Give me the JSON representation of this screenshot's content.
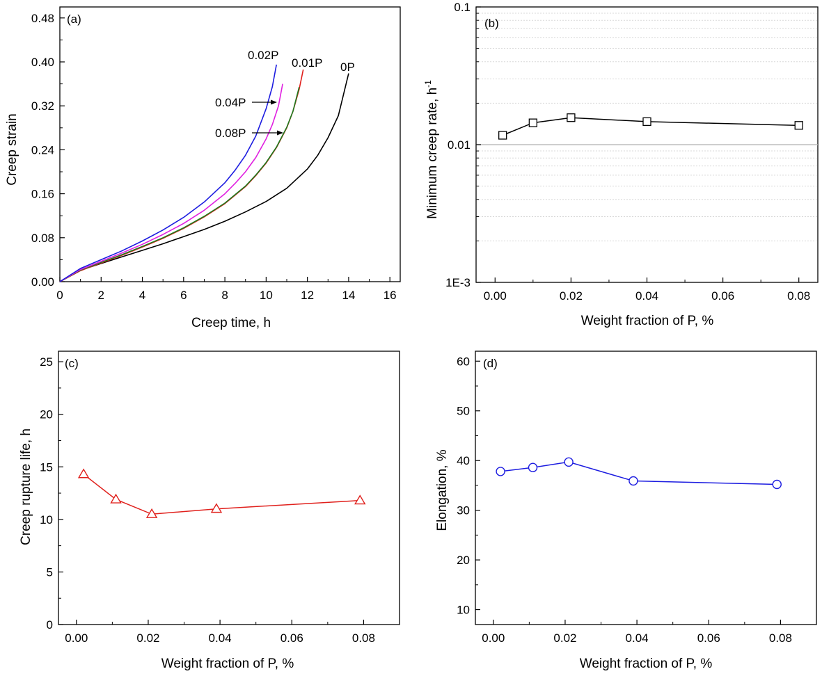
{
  "chart_data": [
    {
      "panel": "(a)",
      "type": "line",
      "xlabel": "Creep time, h",
      "ylabel": "Creep strain",
      "xlim": [
        0,
        16.5
      ],
      "ylim": [
        0,
        0.5
      ],
      "xticks": [
        "0",
        "2",
        "4",
        "6",
        "8",
        "10",
        "12",
        "14",
        "16"
      ],
      "yticks": [
        "0.00",
        "0.08",
        "0.16",
        "0.24",
        "0.32",
        "0.40",
        "0.48"
      ],
      "series": [
        {
          "name": "0P",
          "color": "#000000",
          "x": [
            0,
            1,
            2,
            3,
            4,
            5,
            6,
            7,
            8,
            9,
            10,
            11,
            12,
            12.5,
            13,
            13.5,
            14
          ],
          "y": [
            0,
            0.021,
            0.033,
            0.045,
            0.057,
            0.069,
            0.082,
            0.095,
            0.11,
            0.127,
            0.146,
            0.17,
            0.205,
            0.23,
            0.262,
            0.302,
            0.379
          ]
        },
        {
          "name": "0.01P",
          "color": "#e0201c",
          "x": [
            0,
            1,
            2,
            3,
            4,
            5,
            6,
            7,
            8,
            9,
            9.5,
            10,
            10.5,
            11,
            11.3,
            11.6,
            11.8
          ],
          "y": [
            0,
            0.02,
            0.034,
            0.048,
            0.063,
            0.079,
            0.097,
            0.118,
            0.142,
            0.173,
            0.193,
            0.216,
            0.244,
            0.28,
            0.31,
            0.35,
            0.386
          ]
        },
        {
          "name": "0.08P",
          "color": "#1e7a1e",
          "x": [
            0,
            1,
            2,
            3,
            4,
            5,
            6,
            7,
            8,
            9,
            9.5,
            10,
            10.5,
            11,
            11.3,
            11.6
          ],
          "y": [
            0,
            0.021,
            0.035,
            0.049,
            0.064,
            0.08,
            0.098,
            0.119,
            0.143,
            0.174,
            0.194,
            0.217,
            0.245,
            0.281,
            0.31,
            0.354
          ]
        },
        {
          "name": "0.04P",
          "color": "#e020e0",
          "x": [
            0,
            1,
            2,
            3,
            4,
            5,
            6,
            7,
            8,
            8.5,
            9,
            9.5,
            10,
            10.3,
            10.6,
            10.8
          ],
          "y": [
            0,
            0.022,
            0.037,
            0.052,
            0.068,
            0.086,
            0.106,
            0.13,
            0.16,
            0.179,
            0.2,
            0.226,
            0.26,
            0.286,
            0.32,
            0.36
          ]
        },
        {
          "name": "0.02P",
          "color": "#1c1ce0",
          "x": [
            0,
            1,
            2,
            3,
            4,
            5,
            6,
            7,
            8,
            8.5,
            9,
            9.5,
            10,
            10.3,
            10.5
          ],
          "y": [
            0,
            0.024,
            0.04,
            0.056,
            0.074,
            0.094,
            0.117,
            0.145,
            0.18,
            0.203,
            0.23,
            0.265,
            0.315,
            0.355,
            0.395
          ]
        }
      ],
      "labels": [
        "0.02P",
        "0.01P",
        "0P",
        "0.04P",
        "0.08P"
      ]
    },
    {
      "panel": "(b)",
      "type": "line",
      "scale_y": "log",
      "xlabel": "Weight fraction of P, %",
      "ylabel_main": "Minimum creep rate, h",
      "ylabel_sup": "-1",
      "xlim": [
        -0.005,
        0.085
      ],
      "ylim": [
        0.001,
        0.1
      ],
      "xticks": [
        "0.00",
        "0.02",
        "0.04",
        "0.06",
        "0.08"
      ],
      "yticks": [
        "1E-3",
        "0.01",
        "0.1"
      ],
      "grid": true,
      "marker": "square",
      "color": "#000000",
      "x": [
        0.002,
        0.01,
        0.02,
        0.04,
        0.08
      ],
      "y": [
        0.0117,
        0.0144,
        0.0157,
        0.0147,
        0.0138
      ]
    },
    {
      "panel": "(c)",
      "type": "line",
      "xlabel": "Weight fraction of P, %",
      "ylabel": "Creep rupture life, h",
      "xlim": [
        -0.005,
        0.09
      ],
      "ylim": [
        0,
        26
      ],
      "xticks": [
        "0.00",
        "0.02",
        "0.04",
        "0.06",
        "0.08"
      ],
      "yticks": [
        "0",
        "5",
        "10",
        "15",
        "20",
        "25"
      ],
      "marker": "triangle",
      "color": "#e0201c",
      "x": [
        0.002,
        0.011,
        0.021,
        0.039,
        0.079
      ],
      "y": [
        14.3,
        11.9,
        10.5,
        11.0,
        11.8
      ]
    },
    {
      "panel": "(d)",
      "type": "line",
      "xlabel": "Weight fraction of P, %",
      "ylabel": "Elongation, %",
      "xlim": [
        -0.005,
        0.09
      ],
      "ylim": [
        7,
        62
      ],
      "xticks": [
        "0.00",
        "0.02",
        "0.04",
        "0.06",
        "0.08"
      ],
      "yticks": [
        "10",
        "20",
        "30",
        "40",
        "50",
        "60"
      ],
      "marker": "circle",
      "color": "#1c1ce0",
      "x": [
        0.002,
        0.011,
        0.021,
        0.039,
        0.079
      ],
      "y": [
        37.8,
        38.6,
        39.7,
        35.9,
        35.2
      ]
    }
  ]
}
